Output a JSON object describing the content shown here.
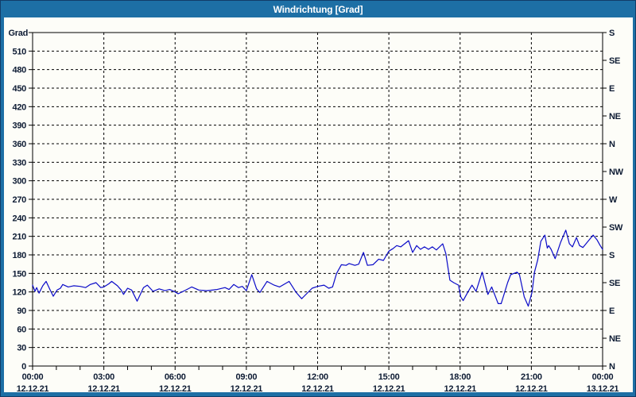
{
  "window": {
    "title": "Windrichtung [Grad]"
  },
  "colors": {
    "titlebar_bg": "#1d6fa5",
    "window_border": "#123c68",
    "plot_bg": "#fdfdf8",
    "line_color": "#0a0ac8",
    "grid_color": "#000000",
    "label_color": "#0d1b33",
    "title_color": "#ffffff"
  },
  "chart_data": {
    "type": "line",
    "title": "Windrichtung [Grad]",
    "ylabel": "Grad",
    "grid": "dashed",
    "y_axis": {
      "min": 0,
      "max": 540,
      "tick_step": 30,
      "labels": [
        "0",
        "30",
        "60",
        "90",
        "120",
        "150",
        "180",
        "210",
        "240",
        "270",
        "300",
        "330",
        "360",
        "390",
        "420",
        "450",
        "480",
        "510"
      ]
    },
    "right_axis": {
      "tick_step": 45,
      "labels_bottom_to_top": [
        "N",
        "NE",
        "E",
        "SE",
        "S",
        "SW",
        "W",
        "NW",
        "N",
        "NE",
        "E",
        "SE",
        "S"
      ]
    },
    "x_axis": {
      "min_hour": 0,
      "max_hour": 24,
      "major_step_hours": 3,
      "minor_step_hours": 1,
      "major_labels": [
        {
          "time": "00:00",
          "date": "12.12.21"
        },
        {
          "time": "03:00",
          "date": "12.12.21"
        },
        {
          "time": "06:00",
          "date": "12.12.21"
        },
        {
          "time": "09:00",
          "date": "12.12.21"
        },
        {
          "time": "12:00",
          "date": "12.12.21"
        },
        {
          "time": "15:00",
          "date": "12.12.21"
        },
        {
          "time": "18:00",
          "date": "12.12.21"
        },
        {
          "time": "21:00",
          "date": "12.12.21"
        },
        {
          "time": "00:00",
          "date": "13.12.21"
        }
      ]
    },
    "series": [
      {
        "name": "Windrichtung",
        "unit": "Grad",
        "points": [
          [
            0,
            131
          ],
          [
            0.1,
            121
          ],
          [
            0.17,
            127
          ],
          [
            0.27,
            118
          ],
          [
            0.43,
            130
          ],
          [
            0.57,
            137
          ],
          [
            0.73,
            124
          ],
          [
            0.87,
            113
          ],
          [
            1.03,
            123
          ],
          [
            1.17,
            126
          ],
          [
            1.27,
            132
          ],
          [
            1.5,
            128
          ],
          [
            1.73,
            130
          ],
          [
            2,
            129
          ],
          [
            2.23,
            127
          ],
          [
            2.43,
            132
          ],
          [
            2.67,
            135
          ],
          [
            2.87,
            127
          ],
          [
            3,
            128
          ],
          [
            3.2,
            133
          ],
          [
            3.33,
            137
          ],
          [
            3.57,
            130
          ],
          [
            3.73,
            123
          ],
          [
            3.83,
            116
          ],
          [
            4,
            126
          ],
          [
            4.17,
            123
          ],
          [
            4.4,
            105
          ],
          [
            4.67,
            127
          ],
          [
            4.83,
            131
          ],
          [
            5.07,
            121
          ],
          [
            5.33,
            125
          ],
          [
            5.57,
            122
          ],
          [
            5.77,
            124
          ],
          [
            6,
            120
          ],
          [
            6.13,
            117
          ],
          [
            6.4,
            122
          ],
          [
            6.7,
            128
          ],
          [
            7,
            123
          ],
          [
            7.33,
            122
          ],
          [
            7.77,
            124
          ],
          [
            8.1,
            127
          ],
          [
            8.27,
            124
          ],
          [
            8.47,
            132
          ],
          [
            8.67,
            127
          ],
          [
            8.83,
            129
          ],
          [
            9,
            122
          ],
          [
            9.23,
            148
          ],
          [
            9.43,
            125
          ],
          [
            9.57,
            119
          ],
          [
            9.87,
            137
          ],
          [
            10.17,
            131
          ],
          [
            10.4,
            128
          ],
          [
            10.8,
            137
          ],
          [
            11.1,
            119
          ],
          [
            11.33,
            109
          ],
          [
            11.77,
            126
          ],
          [
            12,
            129
          ],
          [
            12.27,
            131
          ],
          [
            12.47,
            126
          ],
          [
            12.63,
            128
          ],
          [
            12.8,
            150
          ],
          [
            13,
            164
          ],
          [
            13.2,
            163
          ],
          [
            13.33,
            166
          ],
          [
            13.57,
            163
          ],
          [
            13.73,
            165
          ],
          [
            13.93,
            184
          ],
          [
            14.1,
            163
          ],
          [
            14.33,
            164
          ],
          [
            14.57,
            173
          ],
          [
            14.77,
            171
          ],
          [
            15,
            186
          ],
          [
            15.17,
            190
          ],
          [
            15.33,
            195
          ],
          [
            15.5,
            193
          ],
          [
            15.83,
            203
          ],
          [
            16,
            184
          ],
          [
            16.17,
            195
          ],
          [
            16.33,
            189
          ],
          [
            16.5,
            193
          ],
          [
            16.67,
            189
          ],
          [
            16.83,
            193
          ],
          [
            17,
            188
          ],
          [
            17.27,
            198
          ],
          [
            17.4,
            182
          ],
          [
            17.57,
            139
          ],
          [
            17.73,
            135
          ],
          [
            17.93,
            131
          ],
          [
            18.03,
            112
          ],
          [
            18.13,
            106
          ],
          [
            18.33,
            120
          ],
          [
            18.5,
            131
          ],
          [
            18.67,
            121
          ],
          [
            18.93,
            152
          ],
          [
            19.17,
            116
          ],
          [
            19.33,
            128
          ],
          [
            19.6,
            101
          ],
          [
            19.73,
            101
          ],
          [
            20,
            135
          ],
          [
            20.13,
            148
          ],
          [
            20.4,
            152
          ],
          [
            20.5,
            148
          ],
          [
            20.7,
            112
          ],
          [
            20.87,
            97
          ],
          [
            21.03,
            120
          ],
          [
            21.13,
            152
          ],
          [
            21.27,
            172
          ],
          [
            21.4,
            202
          ],
          [
            21.57,
            212
          ],
          [
            21.67,
            191
          ],
          [
            21.73,
            195
          ],
          [
            21.83,
            189
          ],
          [
            22,
            174
          ],
          [
            22.23,
            200
          ],
          [
            22.45,
            220
          ],
          [
            22.6,
            198
          ],
          [
            22.73,
            193
          ],
          [
            22.9,
            208
          ],
          [
            23.03,
            195
          ],
          [
            23.17,
            192
          ],
          [
            23.43,
            204
          ],
          [
            23.6,
            212
          ],
          [
            23.77,
            204
          ],
          [
            23.9,
            195
          ],
          [
            24,
            189
          ]
        ]
      }
    ]
  }
}
